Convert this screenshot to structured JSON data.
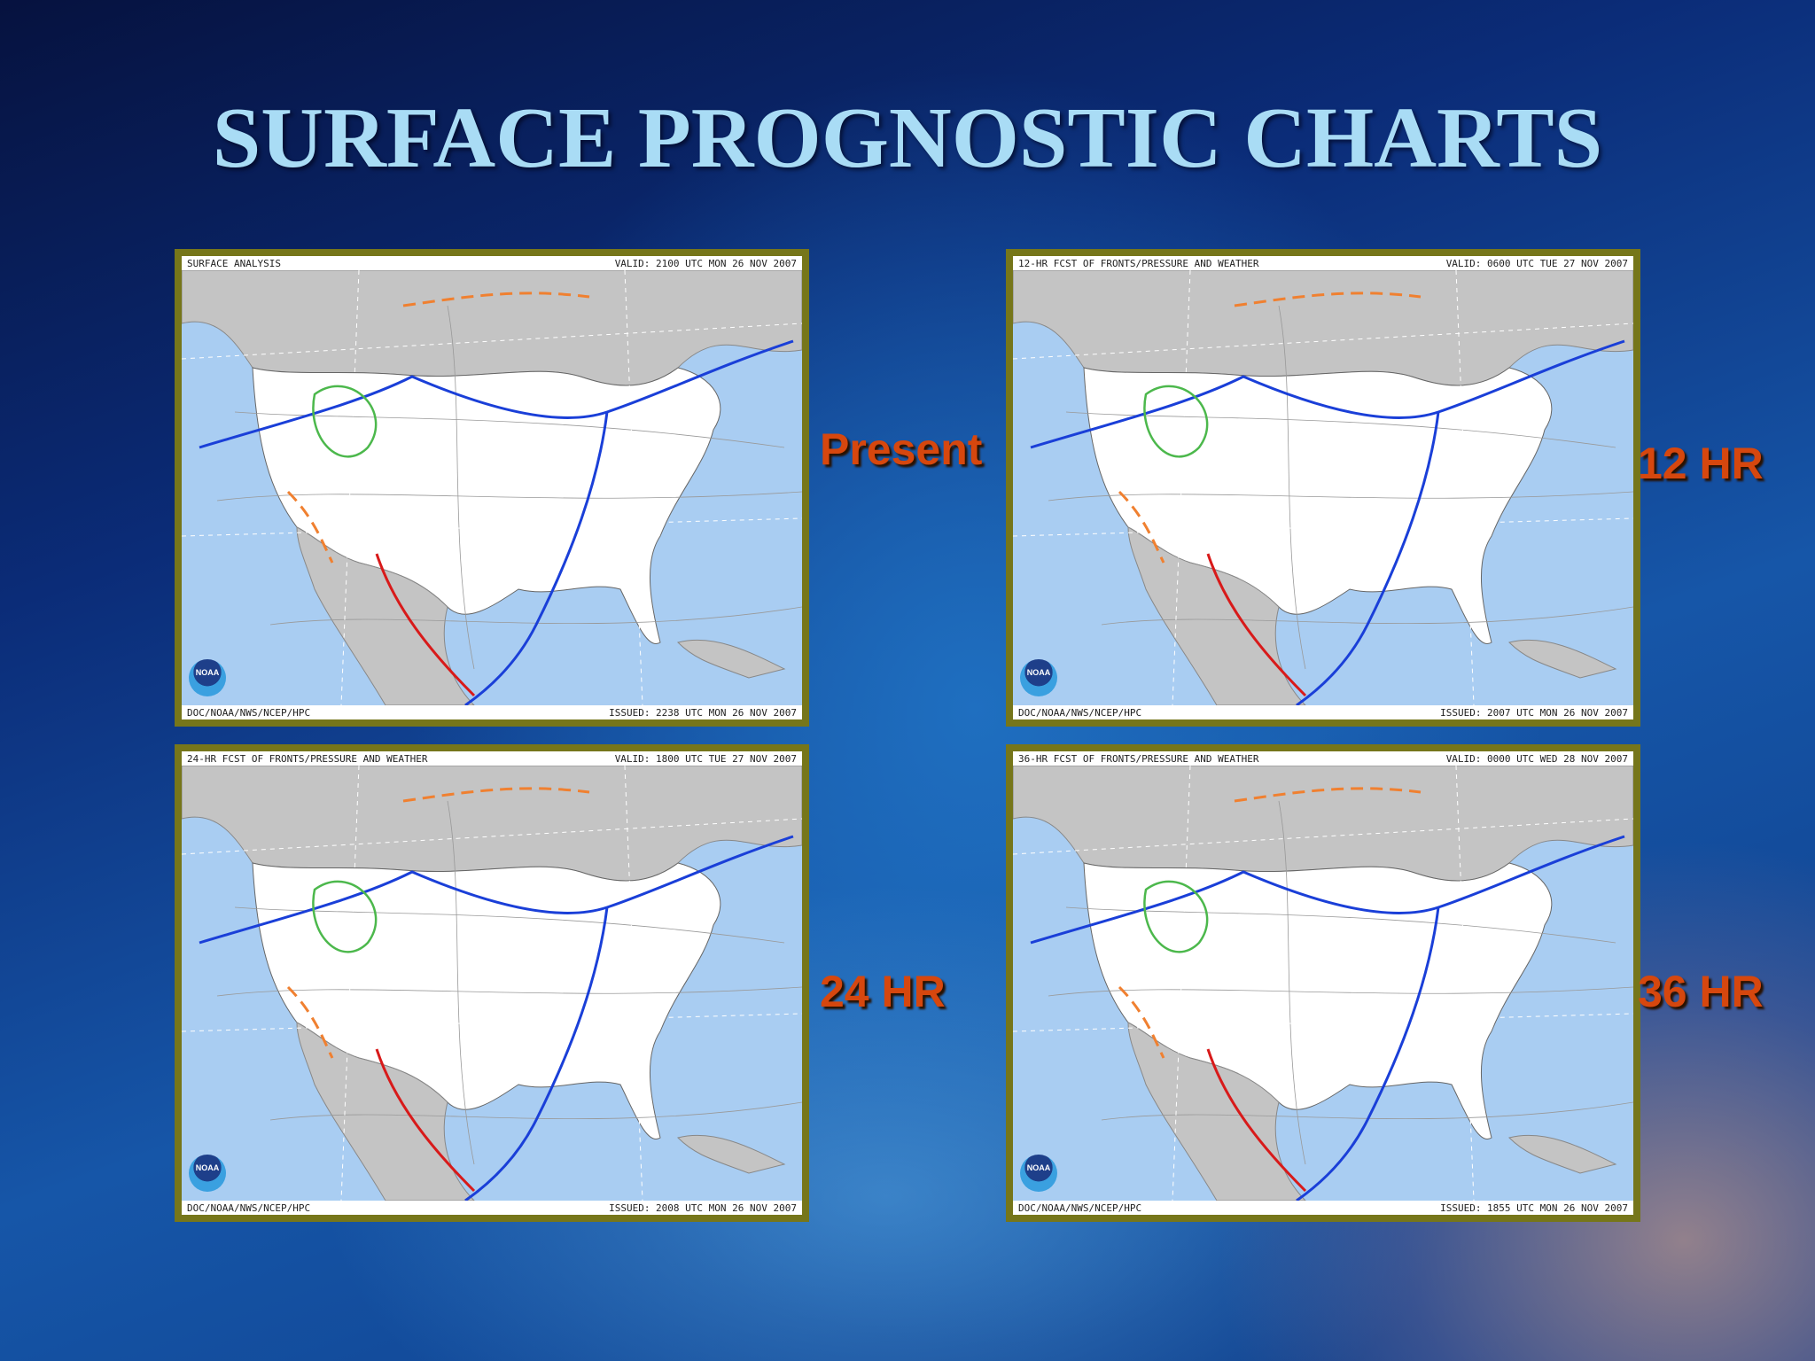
{
  "title": "SURFACE PROGNOSTIC CHARTS",
  "maps": [
    {
      "label": "Present",
      "header": "SURFACE ANALYSIS",
      "valid": "VALID: 2100 UTC MON 26 NOV 2007",
      "footer": "DOC/NOAA/NWS/NCEP/HPC",
      "issued": "ISSUED: 2238 UTC MON 26 NOV 2007",
      "logo": "NOAA"
    },
    {
      "label": "12 HR",
      "header": "12-HR FCST OF FRONTS/PRESSURE AND WEATHER",
      "valid": "VALID: 0600 UTC TUE 27 NOV 2007",
      "footer": "DOC/NOAA/NWS/NCEP/HPC",
      "issued": "ISSUED: 2007 UTC MON 26 NOV 2007",
      "logo": "NOAA"
    },
    {
      "label": "24 HR",
      "header": "24-HR FCST OF FRONTS/PRESSURE AND WEATHER",
      "valid": "VALID: 1800 UTC TUE 27 NOV 2007",
      "footer": "DOC/NOAA/NWS/NCEP/HPC",
      "issued": "ISSUED: 2008 UTC MON 26 NOV 2007",
      "logo": "NOAA"
    },
    {
      "label": "36 HR",
      "header": "36-HR FCST OF FRONTS/PRESSURE AND WEATHER",
      "valid": "VALID: 0000 UTC WED 28 NOV 2007",
      "footer": "DOC/NOAA/NWS/NCEP/HPC",
      "issued": "ISSUED: 1855 UTC MON 26 NOV 2007",
      "logo": "NOAA"
    }
  ]
}
